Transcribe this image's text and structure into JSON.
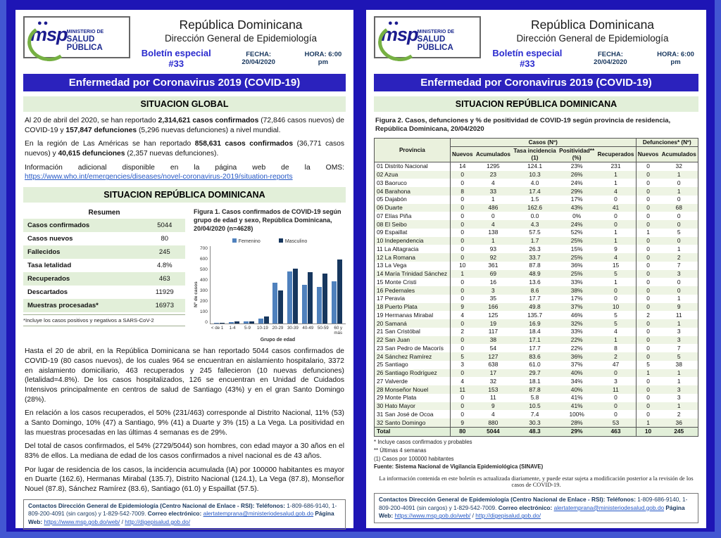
{
  "shared": {
    "logo": {
      "dots": "●●",
      "msp": "msp",
      "line1": "MINISTERIO DE",
      "line2": "SALUD PÚBLICA"
    },
    "title": "República Dominicana",
    "subtitle": "Dirección General de Epidemiología",
    "bulletin": "Boletín especial #33",
    "fecha": "FECHA: 20/04/2020",
    "hora": "HORA: 6:00 pm",
    "banner": "Enfermedad por Coronavirus 2019 (COVID-19)",
    "footer_segments": [
      {
        "t": "Contactos Dirección General de Epidemiología (Centro Nacional de Enlace - RSI): ",
        "b": true
      },
      {
        "t": "Teléfonos: ",
        "b": true
      },
      {
        "t": "1-809-686-9140, 1-809-200-4091 (sin cargos) y 1-829-542-7009.  "
      },
      {
        "t": "Correo electrónico: ",
        "b": true
      },
      {
        "t": "alertatemprana@ministeriodesalud.gob.do",
        "u": true
      },
      {
        "t": "  "
      },
      {
        "t": "Página Web: ",
        "b": true
      },
      {
        "t": "https://www.msp.gob.do/web/",
        "u": true
      },
      {
        "t": " / "
      },
      {
        "t": "http://digepisalud.gob.do/",
        "u": true
      }
    ]
  },
  "page_left": {
    "situacion_global": "SITUACION GLOBAL",
    "situacion_rd": "SITUACION REPÚBLICA DOMINICANA",
    "global_paragraphs": [
      [
        {
          "t": "Al 20 de abril del 2020, se han reportado "
        },
        {
          "t": "2,314,621 casos confirmados",
          "b": true
        },
        {
          "t": " (72,846 casos nuevos) de COVID-19 y "
        },
        {
          "t": "157,847 defunciones",
          "b": true
        },
        {
          "t": " (5,296 nuevas defunciones) a nivel mundial."
        }
      ],
      [
        {
          "t": "En la región de Las Américas se han reportado "
        },
        {
          "t": "858,631 casos confirmados",
          "b": true
        },
        {
          "t": " (36,771 casos nuevos) y "
        },
        {
          "t": "40,615 defunciones",
          "b": true
        },
        {
          "t": " (2,357 nuevas defunciones)."
        }
      ],
      [
        {
          "t": "Información adicional disponible en la página web de la OMS: "
        },
        {
          "t": "https://www.who.int/emergencies/diseases/novel-coronavirus-2019/situation-reports",
          "u": true
        }
      ]
    ],
    "resumen": {
      "title": "Resumen",
      "rows": [
        [
          "Casos confirmados",
          "5044"
        ],
        [
          "Casos nuevos",
          "80"
        ],
        [
          "Fallecidos",
          "245"
        ],
        [
          "Tasa letalidad",
          "4.8%"
        ],
        [
          "Recuperados",
          "463"
        ],
        [
          "Descartados",
          "11929"
        ],
        [
          "Muestras procesadas*",
          "16973"
        ]
      ],
      "footnote": "*Incluye los casos positivos y negativos a SARS-CoV-2"
    },
    "figura1_caption": "Figura 1. Casos confirmados de COVID-19 según grupo de edad y sexo, República Dominicana, 20/04/2020 (n=4628)",
    "chart_data": {
      "type": "bar",
      "title": "Casos confirmados de COVID-19 según grupo de edad y sexo, República Dominicana, 20/04/2020 (n=4628)",
      "categories": [
        "< de 1",
        "1-4",
        "5-9",
        "10-19",
        "20-29",
        "30-39",
        "40-49",
        "50-59",
        "60 y más"
      ],
      "series": [
        {
          "name": "Femenino",
          "values": [
            5,
            15,
            22,
            45,
            370,
            470,
            350,
            335,
            385
          ]
        },
        {
          "name": "Masculino",
          "values": [
            5,
            18,
            18,
            62,
            300,
            500,
            465,
            455,
            580
          ]
        }
      ],
      "colors": [
        "#4f81bd",
        "#17375e"
      ],
      "xlabel": "Grupo de edad",
      "ylabel": "Nº de casos",
      "ylim": [
        0,
        700
      ],
      "ytick_step": 100,
      "legend_position": "top",
      "grid": false
    },
    "body_paragraphs": [
      "Hasta el 20 de abril, en la República Dominicana se han reportado 5044 casos confirmados de COVID-19 (80 casos nuevos), de los cuales 964 se encuentran en aislamiento hospitalario, 3372 en aislamiento domiciliario, 463 recuperados y 245 fallecieron (10 nuevas defunciones) (letalidad=4.8%). De los casos hospitalizados, 126 se encuentran en Unidad de Cuidados Intensivos principalmente en centros de salud de Santiago (43%) y en el gran Santo Domingo (28%).",
      "En relación a los casos recuperados, el 50% (231/463) corresponde al Distrito Nacional, 11% (53) a Santo Domingo, 10% (47) a Santiago, 9% (41) a Duarte y 3% (15) a La Vega. La positividad en las muestras procesadas en las últimas 4 semanas es de 29%.",
      "Del total de casos confirmados, el 54% (2729/5044) son hombres, con edad mayor a 30 años en el 83% de ellos. La mediana de edad de los casos confirmados a nivel nacional es de 43 años.",
      "Por lugar de residencia de los casos, la incidencia acumulada (IA) por 100000 habitantes es mayor en Duarte (162.6), Hermanas Mirabal (135.7), Distrito Nacional (124.1), La Vega (87.8), Monseñor Nouel (87.8), Sánchez Ramírez (83.6), Santiago (61.0) y Espaillat (57.5)."
    ]
  },
  "page_right": {
    "situacion_rd": "SITUACION REPÚBLICA DOMINICANA",
    "figura2_caption": "Figura 2. Casos, defunciones y % de positividad de COVID-19 según provincia de residencia, República Dominicana, 20/04/2020",
    "table": {
      "header_provincia": "Provincia",
      "header_casos": "Casos (Nº)",
      "header_defunciones": "Defunciones* (Nº)",
      "sub_headers": [
        "Nuevos",
        "Acumulados",
        "Tasa incidencia\n(1)",
        "Positividad**\n(%)",
        "Recuperados",
        "Nuevos",
        "Acumulados"
      ],
      "rows": [
        [
          "01 Distrito Nacional",
          "14",
          "1295",
          "124.1",
          "23%",
          "231",
          "0",
          "32"
        ],
        [
          "02 Azua",
          "0",
          "23",
          "10.3",
          "26%",
          "1",
          "0",
          "1"
        ],
        [
          "03 Baoruco",
          "0",
          "4",
          "4.0",
          "24%",
          "1",
          "0",
          "0"
        ],
        [
          "04 Barahona",
          "8",
          "33",
          "17.4",
          "29%",
          "4",
          "0",
          "1"
        ],
        [
          "05 Dajabón",
          "0",
          "1",
          "1.5",
          "17%",
          "0",
          "0",
          "0"
        ],
        [
          "06 Duarte",
          "0",
          "486",
          "162.6",
          "43%",
          "41",
          "0",
          "68"
        ],
        [
          "07 Elías Piña",
          "0",
          "0",
          "0.0",
          "0%",
          "0",
          "0",
          "0"
        ],
        [
          "08 El Seibo",
          "0",
          "4",
          "4.3",
          "24%",
          "0",
          "0",
          "0"
        ],
        [
          "09 Espaillat",
          "0",
          "138",
          "57.5",
          "52%",
          "1",
          "1",
          "5"
        ],
        [
          "10 Independencia",
          "0",
          "1",
          "1.7",
          "25%",
          "1",
          "0",
          "0"
        ],
        [
          "11 La Altagracia",
          "0",
          "93",
          "26.3",
          "15%",
          "9",
          "0",
          "1"
        ],
        [
          "12 La Romana",
          "0",
          "92",
          "33.7",
          "25%",
          "4",
          "0",
          "2"
        ],
        [
          "13 La Vega",
          "10",
          "361",
          "87.8",
          "36%",
          "15",
          "0",
          "7"
        ],
        [
          "14 María Trinidad Sánchez",
          "1",
          "69",
          "48.9",
          "25%",
          "5",
          "0",
          "3"
        ],
        [
          "15 Monte Cristi",
          "0",
          "16",
          "13.6",
          "33%",
          "1",
          "0",
          "0"
        ],
        [
          "16 Pedernales",
          "0",
          "3",
          "8.6",
          "38%",
          "0",
          "0",
          "0"
        ],
        [
          "17 Peravia",
          "0",
          "35",
          "17.7",
          "17%",
          "0",
          "0",
          "1"
        ],
        [
          "18 Puerto Plata",
          "9",
          "166",
          "49.8",
          "37%",
          "10",
          "0",
          "9"
        ],
        [
          "19 Hermanas Mirabal",
          "4",
          "125",
          "135.7",
          "46%",
          "5",
          "2",
          "11"
        ],
        [
          "20 Samaná",
          "0",
          "19",
          "16.9",
          "32%",
          "5",
          "0",
          "1"
        ],
        [
          "21 San Cristóbal",
          "2",
          "117",
          "18.4",
          "33%",
          "4",
          "0",
          "3"
        ],
        [
          "22 San Juan",
          "0",
          "38",
          "17.1",
          "22%",
          "1",
          "0",
          "3"
        ],
        [
          "23 San Pedro de Macorís",
          "0",
          "54",
          "17.7",
          "22%",
          "8",
          "0",
          "7"
        ],
        [
          "24 Sánchez Ramírez",
          "5",
          "127",
          "83.6",
          "36%",
          "2",
          "0",
          "5"
        ],
        [
          "25 Santiago",
          "3",
          "638",
          "61.0",
          "37%",
          "47",
          "5",
          "38"
        ],
        [
          "26 Santiago Rodríguez",
          "0",
          "17",
          "29.7",
          "40%",
          "0",
          "1",
          "1"
        ],
        [
          "27 Valverde",
          "4",
          "32",
          "18.1",
          "34%",
          "3",
          "0",
          "1"
        ],
        [
          "28 Monseñor Nouel",
          "11",
          "153",
          "87.8",
          "40%",
          "11",
          "0",
          "3"
        ],
        [
          "29 Monte Plata",
          "0",
          "11",
          "5.8",
          "41%",
          "0",
          "0",
          "3"
        ],
        [
          "30 Hato Mayor",
          "0",
          "9",
          "10.5",
          "41%",
          "0",
          "0",
          "1"
        ],
        [
          "31 San José de Ocoa",
          "0",
          "4",
          "7.4",
          "100%",
          "0",
          "0",
          "2"
        ],
        [
          "32 Santo Domingo",
          "9",
          "880",
          "30.3",
          "28%",
          "53",
          "1",
          "36"
        ]
      ],
      "total_row": [
        [
          "Total",
          "80",
          "5044",
          "48.3",
          "29%",
          "463",
          "10",
          "245"
        ]
      ]
    },
    "footnotes": [
      "* Incluye casos confirmados y probables",
      "** Últimas 4 semanas",
      "(1) Casos por 100000 habitantes"
    ],
    "fuente": "Fuente: Sistema Nacional de Vigilancia Epidemiológica (SINAVE)",
    "note": "La información contenida en este boletín es actualizada diariamente, y puede estar sujeta a modificación posterior a la revisión de los casos de COVID-19."
  }
}
